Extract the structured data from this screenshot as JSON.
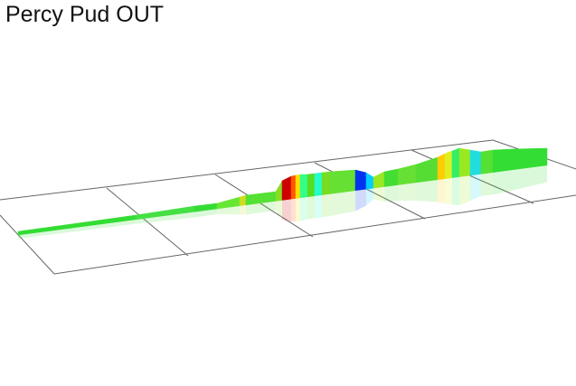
{
  "header": {
    "title": "Percy Pud OUT"
  }
}
